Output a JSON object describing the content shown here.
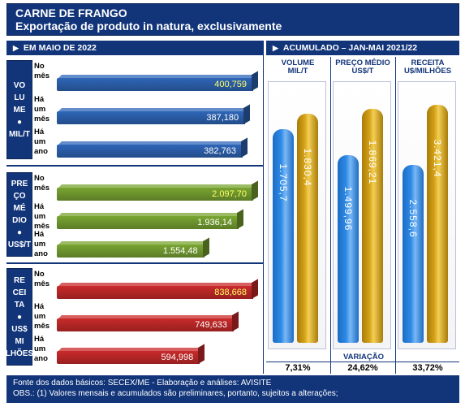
{
  "title": "CARNE DE FRANGO",
  "subtitle": "Exportação de produto in natura, exclusivamente",
  "header_left": "EM MAIO DE 2022",
  "header_right": "ACUMULADO – JAN-MAI 2021/22",
  "arrow_glyph": "▶",
  "row_labels": [
    "No mês",
    "Há um mês",
    "Há um ano"
  ],
  "row_labels_wrapped": [
    "No\nmês",
    "Há\num\nmês",
    "Há\num\nano"
  ],
  "colors": {
    "navy": "#12357a",
    "blue_bar": "#2f66b8",
    "green_bar": "#79a532",
    "red_bar": "#c92a2a",
    "current_value_text": "#ffff66",
    "other_value_text": "#ffffff",
    "cyl_blue": "#2e8ae6",
    "cyl_gold": "#d4a017"
  },
  "chart_data": [
    {
      "type": "bar",
      "group": "VOLUME MIL/T",
      "side_label": "VO\nLU\nME\n●\nMIL/T",
      "categories": [
        "No mês",
        "Há um mês",
        "Há um ano"
      ],
      "values": [
        400.759,
        387.18,
        382.763
      ],
      "value_labels": [
        "400,759",
        "387,180",
        "382,763"
      ]
    },
    {
      "type": "bar",
      "group": "PREÇO MÉDIO US$/T",
      "side_label": "PRE\nÇO\nMÉ\nDIO\n●\nUS$/T",
      "categories": [
        "No mês",
        "Há um mês",
        "Há um ano"
      ],
      "values": [
        2097.7,
        1936.14,
        1554.48
      ],
      "value_labels": [
        "2.097,70",
        "1.936,14",
        "1.554,48"
      ]
    },
    {
      "type": "bar",
      "group": "RECEITA US$ MILHÕES",
      "side_label": "RE\nCEI\nTA\n●\nUS$ MI\nLHÕES",
      "categories": [
        "No mês",
        "Há um mês",
        "Há um ano"
      ],
      "values": [
        838.668,
        749.633,
        594.998
      ],
      "value_labels": [
        "838,668",
        "749,633",
        "594,998"
      ]
    },
    {
      "type": "bar",
      "title": "ACUMULADO – JAN-MAI 2021/22",
      "categories": [
        "VOLUME\nMIL/T",
        "PREÇO MÉDIO\nUS$/T",
        "RECEITA\nU$/MILHÕES"
      ],
      "series": [
        {
          "name": "2021",
          "values": [
            1705.7,
            1499.96,
            2558.6
          ],
          "value_labels": [
            "1.705,7",
            "1.499,96",
            "2.558,6"
          ]
        },
        {
          "name": "2022",
          "values": [
            1830.4,
            1869.21,
            3421.4
          ],
          "value_labels": [
            "1.830,4",
            "1.869,21",
            "3.421,4"
          ]
        }
      ],
      "variation_label": "VARIAÇÃO",
      "variation": [
        "7,31%",
        "24,62%",
        "33,72%"
      ]
    }
  ],
  "footer": {
    "line1": "Fonte dos dados básicos: SECEX/ME - Elaboração e análises: AVISITE",
    "line2": "OBS.: (1) Valores mensais e acumulados são preliminares, portanto, sujeitos a alterações;"
  }
}
